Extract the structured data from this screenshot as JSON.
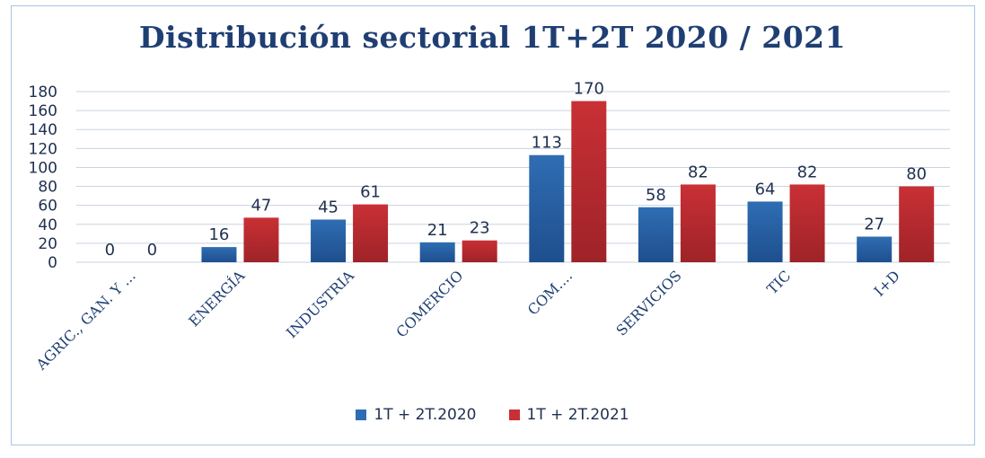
{
  "chart_data": {
    "type": "bar",
    "title": "Distribución sectorial 1T+2T 2020 / 2021",
    "categories": [
      "AGRIC., GAN. Y ...",
      "ENERGÍA",
      "INDUSTRIA",
      "COMERCIO",
      "COM....",
      "SERVICIOS",
      "TIC",
      "I+D"
    ],
    "series": [
      {
        "name": "1T + 2T.2020",
        "values": [
          0,
          16,
          45,
          21,
          113,
          58,
          64,
          27
        ],
        "color": "#2f6db3"
      },
      {
        "name": "1T + 2T.2021",
        "values": [
          0,
          47,
          61,
          23,
          170,
          82,
          82,
          80
        ],
        "color": "#c93035"
      }
    ],
    "ylim": [
      0,
      180
    ],
    "yticks": [
      0,
      20,
      40,
      60,
      80,
      100,
      120,
      140,
      160,
      180
    ],
    "grid": true,
    "legend_position": "bottom"
  }
}
